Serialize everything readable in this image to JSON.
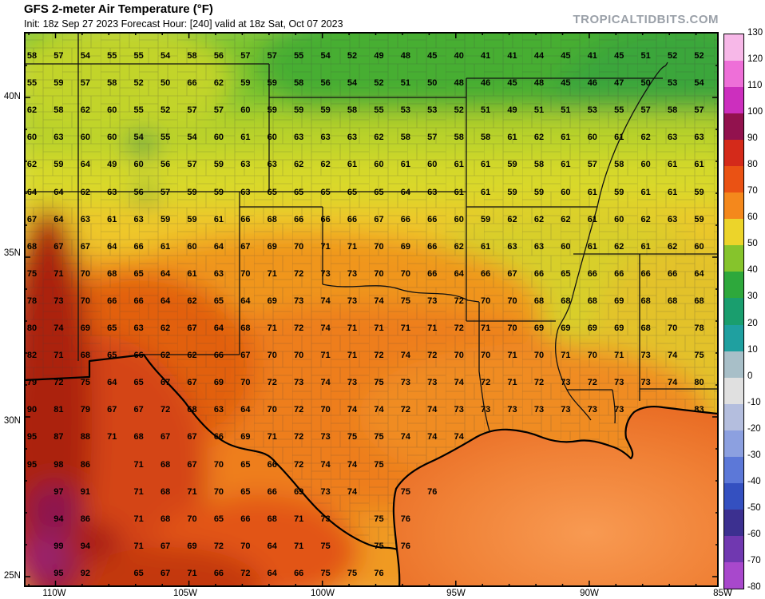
{
  "header": {
    "title": "GFS 2-meter Air Temperature (°F)",
    "init_line": "Init: 18z Sep 27 2023   Forecast Hour: [240]   valid at 18z Sat, Oct 07 2023",
    "watermark": "TROPICALTIDBITS.COM"
  },
  "forecast": {
    "model": "GFS",
    "field": "2-meter Air Temperature",
    "unit": "°F",
    "init": "18z Sep 27 2023",
    "forecast_hour": "240",
    "valid": "18z Sat, Oct 07 2023"
  },
  "axes": {
    "lat_labels": [
      "40N",
      "35N",
      "30N",
      "25N"
    ],
    "lon_labels": [
      "110W",
      "105W",
      "100W",
      "95W",
      "90W",
      "85W"
    ]
  },
  "colorbar": {
    "labels": [
      "130",
      "120",
      "110",
      "100",
      "90",
      "80",
      "70",
      "60",
      "50",
      "40",
      "30",
      "20",
      "10",
      "0",
      "-10",
      "-20",
      "-30",
      "-40",
      "-50",
      "-60",
      "-70",
      "-80"
    ],
    "segment_colors": [
      "#f7b8e8",
      "#ee6fd8",
      "#cc2fbe",
      "#92124e",
      "#d42a1a",
      "#ea5214",
      "#f4881c",
      "#ecd42a",
      "#86c42c",
      "#2ea83c",
      "#1a9e6e",
      "#1fa0a0",
      "#a8bfc8",
      "#e0e0e0",
      "#b4bede",
      "#8ca0e0",
      "#5c78d8",
      "#3450c0",
      "#3c3090",
      "#7038b0",
      "#a848cc"
    ]
  },
  "chart_data": {
    "type": "heatmap",
    "title": "GFS 2-meter Air Temperature (°F)",
    "region": "South-central United States, Gulf of Mexico",
    "lat_range": [
      "25N",
      "41.5N"
    ],
    "lon_range": [
      "111W",
      "85W"
    ],
    "temperature_grid": [
      [
        "58",
        "57",
        "54",
        "55",
        "55",
        "54",
        "58",
        "56",
        "57",
        "57",
        "55",
        "54",
        "52",
        "49",
        "48",
        "45",
        "40",
        "41",
        "41",
        "44",
        "45",
        "41",
        "45",
        "51",
        "52",
        "52"
      ],
      [
        "55",
        "59",
        "57",
        "58",
        "52",
        "50",
        "66",
        "62",
        "59",
        "59",
        "58",
        "56",
        "54",
        "52",
        "51",
        "50",
        "48",
        "46",
        "45",
        "48",
        "45",
        "46",
        "47",
        "50",
        "53",
        "54"
      ],
      [
        "62",
        "58",
        "62",
        "60",
        "55",
        "52",
        "57",
        "57",
        "60",
        "59",
        "59",
        "59",
        "58",
        "55",
        "53",
        "53",
        "52",
        "51",
        "49",
        "51",
        "51",
        "53",
        "55",
        "57",
        "58",
        "57"
      ],
      [
        "60",
        "63",
        "60",
        "60",
        "54",
        "55",
        "54",
        "60",
        "61",
        "60",
        "63",
        "63",
        "63",
        "62",
        "58",
        "57",
        "58",
        "58",
        "61",
        "62",
        "61",
        "60",
        "61",
        "62",
        "63",
        "63"
      ],
      [
        "62",
        "59",
        "64",
        "49",
        "60",
        "56",
        "57",
        "59",
        "63",
        "63",
        "62",
        "62",
        "61",
        "60",
        "61",
        "60",
        "61",
        "61",
        "59",
        "58",
        "61",
        "57",
        "58",
        "60",
        "61",
        "61"
      ],
      [
        "64",
        "64",
        "62",
        "63",
        "56",
        "57",
        "59",
        "59",
        "63",
        "65",
        "65",
        "65",
        "65",
        "65",
        "64",
        "63",
        "61",
        "61",
        "59",
        "59",
        "60",
        "61",
        "59",
        "61",
        "61",
        "59"
      ],
      [
        "67",
        "64",
        "63",
        "61",
        "63",
        "59",
        "59",
        "61",
        "66",
        "68",
        "66",
        "66",
        "66",
        "67",
        "66",
        "66",
        "60",
        "59",
        "62",
        "62",
        "62",
        "61",
        "60",
        "62",
        "63",
        "59"
      ],
      [
        "68",
        "67",
        "67",
        "64",
        "66",
        "61",
        "60",
        "64",
        "67",
        "69",
        "70",
        "71",
        "71",
        "70",
        "69",
        "66",
        "62",
        "61",
        "63",
        "63",
        "60",
        "61",
        "62",
        "61",
        "62",
        "60"
      ],
      [
        "75",
        "71",
        "70",
        "68",
        "65",
        "64",
        "61",
        "63",
        "70",
        "71",
        "72",
        "73",
        "73",
        "70",
        "70",
        "66",
        "64",
        "66",
        "67",
        "66",
        "65",
        "66",
        "66",
        "66",
        "66",
        "64"
      ],
      [
        "78",
        "73",
        "70",
        "66",
        "66",
        "64",
        "62",
        "65",
        "64",
        "69",
        "73",
        "74",
        "73",
        "74",
        "75",
        "73",
        "72",
        "70",
        "70",
        "68",
        "68",
        "68",
        "69",
        "68",
        "68",
        "68"
      ],
      [
        "80",
        "74",
        "69",
        "65",
        "63",
        "62",
        "67",
        "64",
        "68",
        "71",
        "72",
        "74",
        "71",
        "71",
        "71",
        "71",
        "72",
        "71",
        "70",
        "69",
        "69",
        "69",
        "69",
        "68",
        "70",
        "78"
      ],
      [
        "82",
        "71",
        "68",
        "65",
        "66",
        "62",
        "62",
        "66",
        "67",
        "70",
        "70",
        "71",
        "71",
        "72",
        "74",
        "72",
        "70",
        "70",
        "71",
        "70",
        "71",
        "70",
        "71",
        "73",
        "74",
        "75"
      ],
      [
        "79",
        "72",
        "75",
        "64",
        "65",
        "67",
        "67",
        "69",
        "70",
        "72",
        "73",
        "74",
        "73",
        "75",
        "73",
        "73",
        "74",
        "72",
        "71",
        "72",
        "73",
        "72",
        "73",
        "73",
        "74",
        "80"
      ],
      [
        "90",
        "81",
        "79",
        "67",
        "67",
        "72",
        "68",
        "63",
        "64",
        "70",
        "72",
        "70",
        "74",
        "74",
        "72",
        "74",
        "73",
        "73",
        "73",
        "73",
        "73",
        "73",
        "73",
        "",
        "",
        "83"
      ],
      [
        "95",
        "87",
        "88",
        "71",
        "68",
        "67",
        "67",
        "66",
        "69",
        "71",
        "72",
        "73",
        "75",
        "75",
        "74",
        "74",
        "74",
        "",
        "",
        "",
        "",
        "",
        "",
        "",
        "",
        ""
      ],
      [
        "95",
        "98",
        "86",
        "",
        "71",
        "68",
        "67",
        "70",
        "65",
        "66",
        "72",
        "74",
        "74",
        "75",
        "",
        "",
        "",
        "",
        "",
        "",
        "",
        "",
        "",
        "",
        "",
        ""
      ],
      [
        "",
        "97",
        "91",
        "",
        "71",
        "68",
        "71",
        "70",
        "65",
        "66",
        "69",
        "73",
        "74",
        "",
        "75",
        "76",
        "",
        "",
        "",
        "",
        "",
        "",
        "",
        "",
        "",
        ""
      ],
      [
        "",
        "94",
        "86",
        "",
        "71",
        "68",
        "70",
        "65",
        "66",
        "68",
        "71",
        "73",
        "",
        "75",
        "76",
        "",
        "",
        "",
        "",
        "",
        "",
        "",
        "",
        "",
        "",
        ""
      ],
      [
        "",
        "99",
        "94",
        "",
        "71",
        "67",
        "69",
        "72",
        "70",
        "64",
        "71",
        "75",
        "",
        "75",
        "76",
        "",
        "",
        "",
        "",
        "",
        "",
        "",
        "",
        "",
        "",
        ""
      ],
      [
        "",
        "95",
        "92",
        "",
        "65",
        "67",
        "71",
        "66",
        "72",
        "64",
        "66",
        "75",
        "75",
        "76",
        "",
        "",
        "",
        "",
        "",
        "",
        "",
        "",
        "",
        "",
        "",
        ""
      ]
    ]
  }
}
